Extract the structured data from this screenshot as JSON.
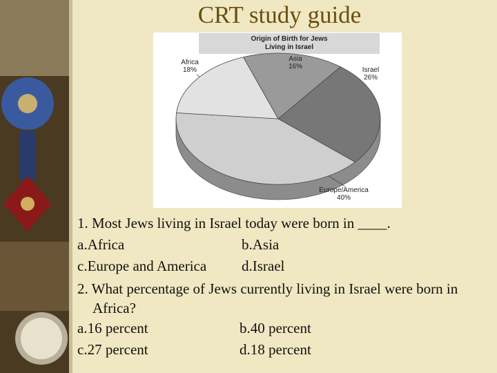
{
  "header": {
    "title": "CRT study guide"
  },
  "chart_data": {
    "type": "pie",
    "title": "Origin of Birth for Jews Living in Israel",
    "categories": [
      "Asia",
      "Israel",
      "Europe/America",
      "Africa"
    ],
    "values": [
      16,
      26,
      40,
      18
    ],
    "value_labels": [
      "16%",
      "26%",
      "40%",
      "18%"
    ],
    "colors": [
      "#9a9a9a",
      "#777777",
      "#cfcfcf",
      "#e2e2e2"
    ]
  },
  "questions": [
    {
      "text": "1. Most Jews living in Israel today were born in ____.",
      "options": [
        "a.Africa",
        "b.Asia",
        "c.Europe and America",
        "d.Israel"
      ]
    },
    {
      "text": "2. What percentage of Jews currently living in Israel were born in Africa?",
      "options": [
        "a.16 percent",
        "b.40 percent",
        "c.27 percent",
        "d.18 percent"
      ]
    }
  ]
}
